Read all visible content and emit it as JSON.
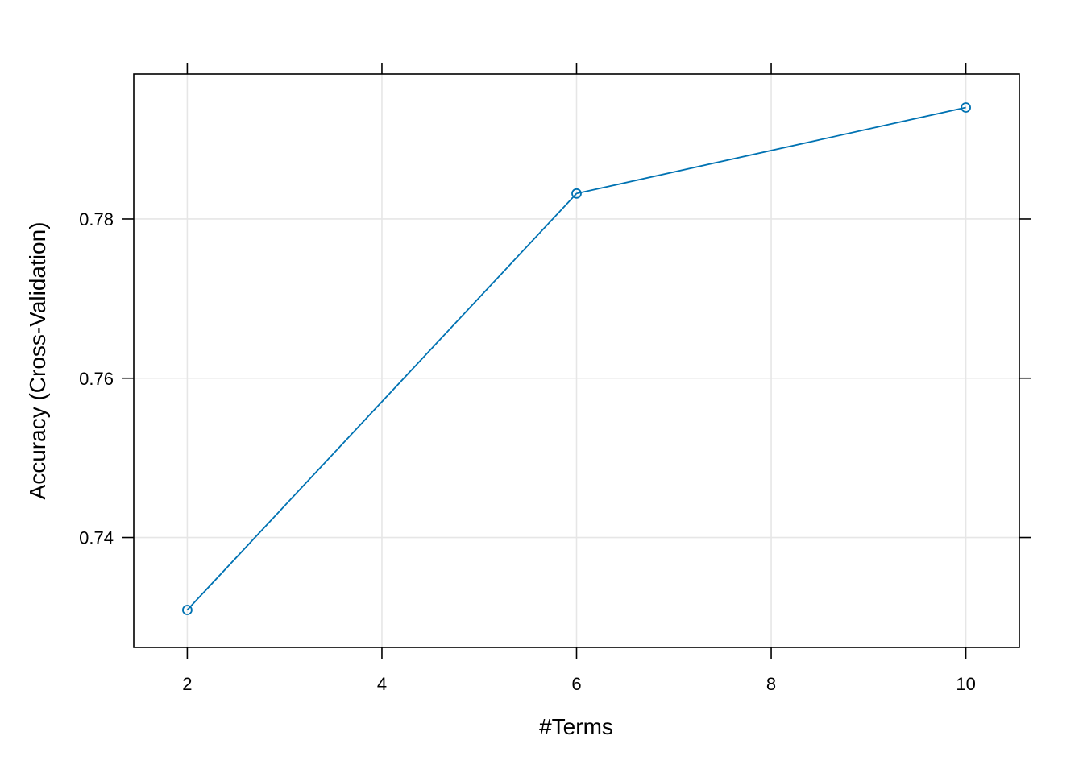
{
  "chart_data": {
    "type": "line",
    "title": "",
    "xlabel": "#Terms",
    "ylabel": "Accuracy (Cross-Validation)",
    "x": [
      2,
      6,
      10
    ],
    "series": [
      {
        "values": [
          0.7309,
          0.7832,
          0.794
        ]
      }
    ],
    "xlim": [
      1.45,
      10.55
    ],
    "ylim": [
      0.7262,
      0.7982
    ],
    "x_ticks": [
      2,
      4,
      6,
      8,
      10
    ],
    "x_tick_labels": [
      "2",
      "4",
      "6",
      "8",
      "10"
    ],
    "y_ticks": [
      0.74,
      0.76,
      0.78
    ],
    "y_tick_labels": [
      "0.74",
      "0.76",
      "0.78"
    ],
    "grid": true,
    "marker": "open-circle",
    "colors": {
      "line": "#0072B2",
      "grid": "#e6e6e6",
      "frame": "#000000"
    }
  }
}
